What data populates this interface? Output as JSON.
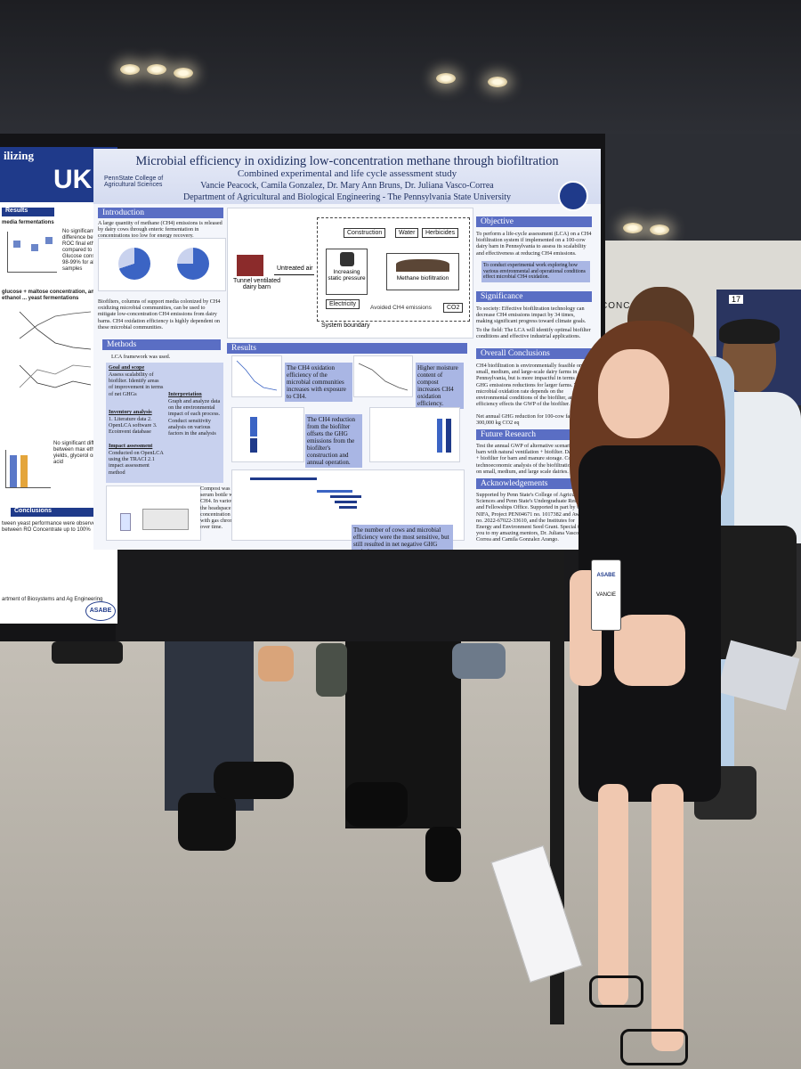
{
  "left_poster": {
    "title_fragment": "ilizing",
    "logo_text": "UK",
    "section_results": "Results",
    "text_results": "No significant difference between ROC final ethanol compared to control. Glucose consumption 98-99% for all samples",
    "media_heading": "media fermentations",
    "glucose_heading": "glucose + maltose concentration, and ethanol ... yeast fermentations",
    "section_conclusions": "Conclusions",
    "conclusions_text": "tween yeast performance were observed between RO Concentrate up to 100%",
    "footer_text": "artment of Biosystems and Ag Engineering",
    "sponsor_logo": "ASABE"
  },
  "main_poster": {
    "title": "Microbial efficiency in oxidizing low-concentration methane through biofiltration",
    "subtitle": "Combined experimental and life cycle assessment study",
    "authors": "Vancie Peacock, Camila Gonzalez, Dr. Mary Ann Bruns, Dr. Juliana Vasco-Correa",
    "department": "Department of Agricultural and Biological Engineering - The Pennsylvania State University",
    "institution_logo": "PennState College of Agricultural Sciences",
    "sections": {
      "introduction": "Introduction",
      "objective": "Objective",
      "significance": "Significance",
      "methods": "Methods",
      "results": "Results",
      "overall_conclusions": "Overall Conclusions",
      "future_research": "Future Research",
      "acknowledgements": "Acknowledgements"
    },
    "intro_text": "A large quantity of methane (CH4) emissions is released by dairy cows through enteric fermentation in concentrations too low for energy recovery.",
    "intro_text2": "Biofilters, columns of support media colonized by CH4 oxidizing microbial communities, can be used to mitigate low-concentration CH4 emissions from dairy barns. CH4 oxidation efficiency is highly dependent on these microbial communities.",
    "diagram": {
      "barn": "Tunnel ventilated dairy barn",
      "untreated_air": "Untreated air",
      "construction": "Construction",
      "water": "Water",
      "herbicides": "Herbicides",
      "pressure": "Increasing static pressure",
      "biofiltration": "Methane biofiltration",
      "electricity": "Electricity",
      "avoided": "Avoided CH4 emissions",
      "co2": "CO2",
      "system_boundary": "System boundary"
    },
    "objective_text": "To perform a life-cycle assessment (LCA) on a CH4 biofiltration system if implemented on a 100-cow dairy barn in Pennsylvania to assess its scalability and effectiveness at reducing CH4 emissions.",
    "objective_text2": "To conduct experimental work exploring how various environmental and operational conditions effect microbial CH4 oxidation.",
    "significance_text": "To society: Effective biofiltration technology can decrease CH4 emissions impact by 34 times, making significant progress toward climate goals.",
    "significance_text2": "To the field: The LCA will identify optimal biofilter conditions and effective industrial applications.",
    "methods_text": "LCA framework was used.",
    "methods_goal": "Goal and scope",
    "methods_goal_items": "Assess scalability of biofilter. Identify areas of improvement in terms of net GHGs",
    "methods_inventory": "Inventory analysis",
    "methods_inventory_items": "1. Literature data 2. OpenLCA software 3. Ecoinvent database",
    "methods_impact": "Impact assessment",
    "methods_impact_items": "Conducted on OpenLCA using the TRACI 2.1 impact assessment method",
    "methods_interp": "Interpretation",
    "methods_interp_items": "Graph and analyze data on the environmental impact of each process. Conduct sensitivity analysis on various factors in the analysis",
    "compost_text": "Compost was incubated in a serum bottle with 1% v/v CH4. In various conditions, the headspace CH4 concentration was measured with gas chromatography over time.",
    "result1": "The CH4 oxidation efficiency of the microbial communities increases with exposure to CH4.",
    "result2": "Higher moisture content of compost increases CH4 oxidation efficiency.",
    "result3": "The CH4 reduction from the biofilter offsets the GHG emissions from the biofilter's construction and annual operation.",
    "result4": "The number of cows and microbial efficiency were the most sensitive, but still resulted in net negative GHG emissions.",
    "conclusions_text": "CH4 biofiltration is environmentally feasible on small, medium, and large-scale dairy farms in Pennsylvania, but is more impactful in terms of GHG emissions reductions for larger farms. The microbial oxidation rate depends on the environmental conditions of the biofilter, and its efficiency effects the GWP of the biofilter.",
    "conclusions_value": "Net annual GHG reduction for 100-cow farm: 300,000 kg CO2 eq",
    "future_text": "Test the annual GWP of alternative scenarios. Dairy barn with natural ventilation + biofilter. Dairy barn + biofilter for barn and manure storage. Conduct technoeconomic analysis of the biofiltration system on small, medium, and large scale dairies.",
    "ack_text": "Supported by Penn State's College of Agricultural Sciences and Penn State's Undergraduate Research and Fellowships Office. Supported in part by USDA NIFA, Project PEN04671 no. 1017382 and Award no. 2022-67022-33610, and the Institutes for Energy and Environment Seed Grant. Special thank you to my amazing mentors, Dr. Juliana Vasco-Correa and Camila Gonzalez Arango."
  },
  "booth_sign": "CONC",
  "booth_number": "17",
  "badge": {
    "logo": "ASABE",
    "name": "VANCIE"
  }
}
